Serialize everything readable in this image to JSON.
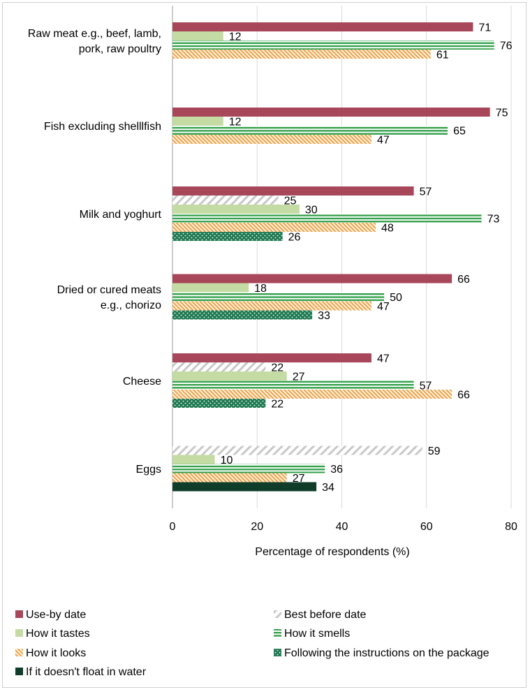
{
  "chart_data": {
    "type": "bar",
    "orientation": "horizontal",
    "xlabel": "Percentage of respondents (%)",
    "xlim": [
      0,
      80
    ],
    "xticks": [
      0,
      20,
      40,
      60,
      80
    ],
    "grid": true,
    "legend_position": "bottom",
    "categories": [
      [
        "Raw meat e.g., beef, lamb,",
        "pork, raw poultry"
      ],
      [
        "Fish excluding shelllfish"
      ],
      [
        "Milk and yoghurt"
      ],
      [
        "Dried or cured meats",
        "e.g., chorizo"
      ],
      [
        "Cheese"
      ],
      [
        "Eggs"
      ]
    ],
    "series": [
      {
        "name": "Use-by date",
        "color": "#a8475a",
        "pattern": "solid",
        "values": [
          71,
          75,
          57,
          66,
          47,
          null
        ]
      },
      {
        "name": "Best before date",
        "color": "#c8c8c8",
        "pattern": "diagonal-light",
        "values": [
          null,
          null,
          25,
          null,
          22,
          59
        ]
      },
      {
        "name": "How it tastes",
        "color": "#c5dba4",
        "pattern": "solid",
        "values": [
          12,
          12,
          30,
          18,
          27,
          10
        ]
      },
      {
        "name": "How it smells",
        "color": "#2e9e46",
        "pattern": "horizontal-stripes",
        "values": [
          76,
          65,
          73,
          50,
          57,
          36
        ]
      },
      {
        "name": "How it looks",
        "color": "#f0a850",
        "pattern": "diagonal-dense",
        "values": [
          61,
          47,
          48,
          47,
          66,
          27
        ]
      },
      {
        "name": "Following the instructions on the package",
        "color": "#1f7a52",
        "pattern": "dots",
        "values": [
          null,
          null,
          26,
          33,
          22,
          null
        ]
      },
      {
        "name": "If it doesn't float in water",
        "color": "#0f3d2a",
        "pattern": "solid",
        "values": [
          null,
          null,
          null,
          null,
          null,
          34
        ]
      }
    ]
  }
}
